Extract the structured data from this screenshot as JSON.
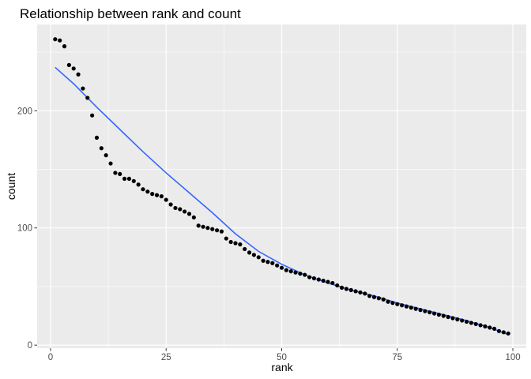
{
  "chart_data": {
    "type": "scatter",
    "title": "Relationship between rank and count",
    "xlabel": "rank",
    "ylabel": "count",
    "xlim": [
      -2.9,
      102.9
    ],
    "ylim": [
      -2.6,
      273.6
    ],
    "x_ticks": [
      0,
      25,
      50,
      75,
      100
    ],
    "y_ticks": [
      0,
      100,
      200
    ],
    "grid": true,
    "background": "#EBEBEB",
    "point_color": "#000000",
    "smooth_line_color": "#3366FF",
    "points": [
      [
        1,
        261
      ],
      [
        2,
        260
      ],
      [
        3,
        255
      ],
      [
        4,
        239
      ],
      [
        5,
        236
      ],
      [
        6,
        231
      ],
      [
        7,
        219
      ],
      [
        8,
        211
      ],
      [
        9,
        196
      ],
      [
        10,
        177
      ],
      [
        11,
        168
      ],
      [
        12,
        162
      ],
      [
        13,
        155
      ],
      [
        14,
        147
      ],
      [
        15,
        146
      ],
      [
        16,
        142
      ],
      [
        17,
        142
      ],
      [
        18,
        140
      ],
      [
        19,
        137
      ],
      [
        20,
        133
      ],
      [
        21,
        131
      ],
      [
        22,
        129
      ],
      [
        23,
        128
      ],
      [
        24,
        127
      ],
      [
        25,
        124
      ],
      [
        26,
        120
      ],
      [
        27,
        117
      ],
      [
        28,
        116
      ],
      [
        29,
        114
      ],
      [
        30,
        112
      ],
      [
        31,
        109
      ],
      [
        32,
        102
      ],
      [
        33,
        101
      ],
      [
        34,
        100
      ],
      [
        35,
        99
      ],
      [
        36,
        98
      ],
      [
        37,
        97
      ],
      [
        38,
        91
      ],
      [
        39,
        88
      ],
      [
        40,
        87
      ],
      [
        41,
        86
      ],
      [
        42,
        82
      ],
      [
        43,
        79
      ],
      [
        44,
        77
      ],
      [
        45,
        75
      ],
      [
        46,
        72
      ],
      [
        47,
        71
      ],
      [
        48,
        70
      ],
      [
        49,
        68
      ],
      [
        50,
        66
      ],
      [
        51,
        64
      ],
      [
        52,
        63
      ],
      [
        53,
        62
      ],
      [
        54,
        61
      ],
      [
        55,
        60
      ],
      [
        56,
        58
      ],
      [
        57,
        57
      ],
      [
        58,
        56
      ],
      [
        59,
        55
      ],
      [
        60,
        54
      ],
      [
        61,
        53
      ],
      [
        62,
        51
      ],
      [
        63,
        49
      ],
      [
        64,
        48
      ],
      [
        65,
        47
      ],
      [
        66,
        46
      ],
      [
        67,
        45
      ],
      [
        68,
        44
      ],
      [
        69,
        42
      ],
      [
        70,
        41
      ],
      [
        71,
        40
      ],
      [
        72,
        39
      ],
      [
        73,
        37
      ],
      [
        74,
        36
      ],
      [
        75,
        35
      ],
      [
        76,
        34
      ],
      [
        77,
        33
      ],
      [
        78,
        32
      ],
      [
        79,
        31
      ],
      [
        80,
        30
      ],
      [
        81,
        29
      ],
      [
        82,
        28
      ],
      [
        83,
        27
      ],
      [
        84,
        26
      ],
      [
        85,
        25
      ],
      [
        86,
        24
      ],
      [
        87,
        23
      ],
      [
        88,
        22
      ],
      [
        89,
        21
      ],
      [
        90,
        20
      ],
      [
        91,
        19
      ],
      [
        92,
        18
      ],
      [
        93,
        17
      ],
      [
        94,
        16
      ],
      [
        95,
        15
      ],
      [
        96,
        14
      ],
      [
        97,
        12
      ],
      [
        98,
        11
      ],
      [
        99,
        10
      ]
    ],
    "smooth_line": [
      [
        1,
        237
      ],
      [
        5,
        223
      ],
      [
        10,
        203
      ],
      [
        15,
        184
      ],
      [
        20,
        165
      ],
      [
        25,
        147
      ],
      [
        30,
        130
      ],
      [
        35,
        113
      ],
      [
        40,
        95
      ],
      [
        45,
        80
      ],
      [
        50,
        69
      ],
      [
        55,
        60
      ],
      [
        60,
        53
      ],
      [
        65,
        47
      ],
      [
        70,
        42
      ],
      [
        75,
        36
      ],
      [
        80,
        31
      ],
      [
        85,
        26
      ],
      [
        90,
        21
      ],
      [
        95,
        15
      ],
      [
        99,
        9
      ]
    ]
  }
}
